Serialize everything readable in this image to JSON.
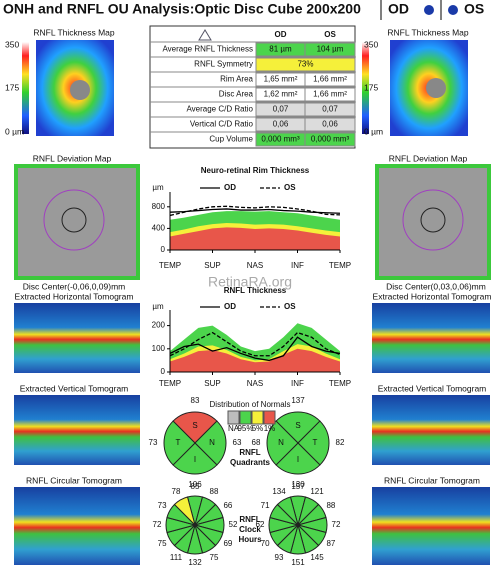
{
  "header": {
    "title": "ONH and RNFL OU Analysis:Optic Disc Cube 200x200",
    "od": "OD",
    "os": "OS"
  },
  "thickness_map": {
    "title": "RNFL Thickness Map",
    "scale": [
      "350",
      "175",
      "0 µm"
    ]
  },
  "table": {
    "columns": [
      "OD",
      "OS"
    ],
    "rows": [
      {
        "label": "Average RNFL Thickness",
        "od": "81 µm",
        "os": "104 µm",
        "color": "#4cd44c"
      },
      {
        "label": "RNFL Symmetry",
        "value": "73%",
        "color": "#f5f03a"
      },
      {
        "label": "Rim Area",
        "od": "1,65 mm²",
        "os": "1,66 mm²",
        "color": "#ffffff"
      },
      {
        "label": "Disc Area",
        "od": "1,62 mm²",
        "os": "1,66 mm²",
        "color": "#ffffff"
      },
      {
        "label": "Average C/D Ratio",
        "od": "0,07",
        "os": "0,07",
        "color": "#dcdcdc"
      },
      {
        "label": "Vertical C/D Ratio",
        "od": "0,06",
        "os": "0,06",
        "color": "#dcdcdc"
      },
      {
        "label": "Cup Volume",
        "od": "0,000 mm³",
        "os": "0,000 mm³",
        "color": "#4cd44c"
      }
    ]
  },
  "deviation_map": {
    "title": "RNFL Deviation Map",
    "od_center": "Disc Center(-0,06,0,09)mm",
    "os_center": "Disc Center(0,03,0,06)mm"
  },
  "tomograms": {
    "horizontal": "Extracted Horizontal Tomogram",
    "vertical": "Extracted Vertical Tomogram",
    "circular": "RNFL Circular Tomogram"
  },
  "watermark": "RetinaRA.org",
  "chart_data": [
    {
      "type": "line",
      "title": "Neuro-retinal Rim Thickness",
      "ylabel": "µm",
      "x": [
        0,
        1,
        2,
        3,
        4,
        5,
        6,
        7,
        8,
        9,
        10,
        11,
        12
      ],
      "xlim": [
        0,
        12
      ],
      "xticks": [
        {
          "value": 0,
          "label": "TEMP"
        },
        {
          "value": 3,
          "label": "SUP"
        },
        {
          "value": 6,
          "label": "NAS"
        },
        {
          "value": 9,
          "label": "INF"
        },
        {
          "value": 12,
          "label": "TEMP"
        }
      ],
      "ylim": [
        0,
        1000
      ],
      "yticks": [
        0,
        400,
        800
      ],
      "bands": [
        {
          "color": "#4cd44c",
          "values": [
            560,
            600,
            650,
            700,
            720,
            720,
            710,
            720,
            700,
            680,
            640,
            600,
            560
          ]
        },
        {
          "color": "#f5f03a",
          "values": [
            330,
            380,
            440,
            480,
            500,
            490,
            470,
            480,
            470,
            440,
            400,
            360,
            330
          ]
        },
        {
          "color": "#e8564a",
          "values": [
            250,
            300,
            350,
            400,
            420,
            410,
            390,
            400,
            390,
            360,
            320,
            280,
            250
          ]
        }
      ],
      "series": [
        {
          "name": "OD",
          "color": "#000000",
          "style": "solid",
          "values": [
            700,
            710,
            730,
            750,
            760,
            740,
            740,
            750,
            730,
            720,
            700,
            690,
            680
          ]
        },
        {
          "name": "OS",
          "color": "#000000",
          "style": "dashed",
          "values": [
            640,
            700,
            760,
            800,
            810,
            790,
            780,
            800,
            790,
            760,
            720,
            660,
            650
          ]
        }
      ]
    },
    {
      "type": "line",
      "title": "RNFL Thickness",
      "ylabel": "µm",
      "x": [
        0,
        1,
        2,
        3,
        4,
        5,
        6,
        7,
        8,
        9,
        10,
        11,
        12
      ],
      "xlim": [
        0,
        12
      ],
      "xticks": [
        {
          "value": 0,
          "label": "TEMP"
        },
        {
          "value": 3,
          "label": "SUP"
        },
        {
          "value": 6,
          "label": "NAS"
        },
        {
          "value": 9,
          "label": "INF"
        },
        {
          "value": 12,
          "label": "TEMP"
        }
      ],
      "ylim": [
        0,
        250
      ],
      "yticks": [
        0,
        100,
        200
      ],
      "bands": [
        {
          "color": "#4cd44c",
          "values": [
            90,
            140,
            190,
            200,
            160,
            110,
            90,
            100,
            150,
            210,
            190,
            140,
            90
          ]
        },
        {
          "color": "#f5f03a",
          "values": [
            55,
            80,
            110,
            115,
            95,
            65,
            50,
            55,
            90,
            120,
            110,
            80,
            55
          ]
        },
        {
          "color": "#e8564a",
          "values": [
            45,
            65,
            90,
            95,
            80,
            55,
            42,
            45,
            75,
            100,
            90,
            65,
            45
          ]
        }
      ],
      "series": [
        {
          "name": "OD",
          "color": "#000000",
          "style": "solid",
          "values": [
            80,
            110,
            120,
            90,
            105,
            80,
            60,
            50,
            70,
            150,
            110,
            90,
            80
          ]
        },
        {
          "name": "OS",
          "color": "#000000",
          "style": "dashed",
          "values": [
            70,
            100,
            140,
            170,
            130,
            90,
            70,
            70,
            110,
            170,
            150,
            100,
            75
          ]
        }
      ]
    },
    {
      "type": "quadrants",
      "title_lines": [
        "RNFL",
        "Quadrants"
      ],
      "legend": {
        "title": "Distribution of Normals",
        "items": [
          {
            "label": "NA",
            "color": "#bdbdbd"
          },
          {
            "label": "95%",
            "color": "#4cd44c"
          },
          {
            "label": "5%",
            "color": "#f5f03a"
          },
          {
            "label": "1%",
            "color": "#e8564a"
          }
        ]
      },
      "eyes": [
        {
          "labels": [
            "S",
            "N",
            "I",
            "T"
          ],
          "values": [
            83,
            63,
            106,
            73
          ],
          "colors": [
            "#e8564a",
            "#4cd44c",
            "#4cd44c",
            "#4cd44c"
          ]
        },
        {
          "labels": [
            "S",
            "T",
            "I",
            "N"
          ],
          "values": [
            137,
            82,
            130,
            68
          ],
          "colors": [
            "#4cd44c",
            "#4cd44c",
            "#4cd44c",
            "#4cd44c"
          ]
        }
      ]
    },
    {
      "type": "clock",
      "title_lines": [
        "RNFL",
        "Clock",
        "Hours"
      ],
      "eyes": [
        {
          "values": [
            85,
            88,
            66,
            52,
            69,
            75,
            132,
            111,
            75,
            72,
            73,
            78
          ],
          "colors": [
            "#4cd44c",
            "#4cd44c",
            "#4cd44c",
            "#4cd44c",
            "#4cd44c",
            "#4cd44c",
            "#4cd44c",
            "#4cd44c",
            "#4cd44c",
            "#4cd44c",
            "#4cd44c",
            "#f5f03a"
          ]
        },
        {
          "values": [
            157,
            121,
            88,
            72,
            87,
            145,
            151,
            93,
            70,
            62,
            71,
            134
          ],
          "colors": [
            "#4cd44c",
            "#4cd44c",
            "#4cd44c",
            "#4cd44c",
            "#4cd44c",
            "#4cd44c",
            "#4cd44c",
            "#4cd44c",
            "#4cd44c",
            "#4cd44c",
            "#4cd44c",
            "#4cd44c"
          ]
        }
      ]
    }
  ]
}
